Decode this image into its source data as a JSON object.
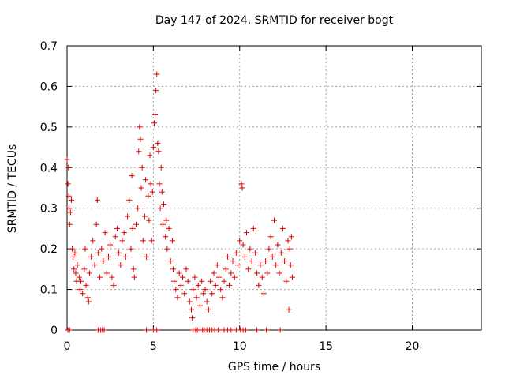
{
  "chart_data": {
    "type": "scatter",
    "title": "Day 147 of 2024, SRMTID for receiver bogt",
    "xlabel": "GPS time / hours",
    "ylabel": "SRMTID / TECUs",
    "xlim": [
      0,
      24
    ],
    "ylim": [
      0,
      0.7
    ],
    "xticks": [
      0,
      5,
      10,
      15,
      20
    ],
    "yticks": [
      0,
      0.1,
      0.2,
      0.3,
      0.4,
      0.5,
      0.6,
      0.7
    ],
    "ytick_labels": [
      "0",
      "0.1",
      "0.2",
      "0.3",
      "0.4",
      "0.5",
      "0.6",
      "0.7"
    ],
    "grid": true,
    "marker": "+",
    "color": "#e00000",
    "series": [
      {
        "name": "SRMTID",
        "points": [
          [
            0.0,
            0.42
          ],
          [
            0.05,
            0.36
          ],
          [
            0.08,
            0.4
          ],
          [
            0.1,
            0.33
          ],
          [
            0.12,
            0.3
          ],
          [
            0.15,
            0.26
          ],
          [
            0.2,
            0.29
          ],
          [
            0.25,
            0.32
          ],
          [
            0.3,
            0.2
          ],
          [
            0.35,
            0.18
          ],
          [
            0.4,
            0.15
          ],
          [
            0.45,
            0.19
          ],
          [
            0.5,
            0.14
          ],
          [
            0.55,
            0.12
          ],
          [
            0.6,
            0.16
          ],
          [
            0.7,
            0.13
          ],
          [
            0.75,
            0.1
          ],
          [
            0.8,
            0.12
          ],
          [
            0.9,
            0.09
          ],
          [
            1.0,
            0.15
          ],
          [
            1.05,
            0.2
          ],
          [
            1.1,
            0.11
          ],
          [
            1.2,
            0.08
          ],
          [
            1.25,
            0.07
          ],
          [
            1.3,
            0.14
          ],
          [
            1.4,
            0.18
          ],
          [
            1.5,
            0.22
          ],
          [
            1.6,
            0.16
          ],
          [
            1.7,
            0.26
          ],
          [
            1.75,
            0.32
          ],
          [
            1.8,
            0.19
          ],
          [
            1.9,
            0.13
          ],
          [
            2.0,
            0.2
          ],
          [
            2.1,
            0.17
          ],
          [
            2.2,
            0.24
          ],
          [
            2.3,
            0.14
          ],
          [
            2.4,
            0.18
          ],
          [
            2.5,
            0.21
          ],
          [
            2.6,
            0.13
          ],
          [
            2.7,
            0.11
          ],
          [
            2.8,
            0.23
          ],
          [
            2.9,
            0.25
          ],
          [
            3.0,
            0.19
          ],
          [
            3.1,
            0.16
          ],
          [
            3.2,
            0.22
          ],
          [
            3.3,
            0.24
          ],
          [
            3.4,
            0.18
          ],
          [
            3.5,
            0.28
          ],
          [
            3.6,
            0.32
          ],
          [
            3.7,
            0.2
          ],
          [
            3.75,
            0.38
          ],
          [
            3.8,
            0.25
          ],
          [
            3.85,
            0.15
          ],
          [
            3.9,
            0.13
          ],
          [
            4.0,
            0.26
          ],
          [
            4.1,
            0.3
          ],
          [
            4.15,
            0.44
          ],
          [
            4.2,
            0.5
          ],
          [
            4.25,
            0.47
          ],
          [
            4.3,
            0.35
          ],
          [
            4.35,
            0.4
          ],
          [
            4.4,
            0.22
          ],
          [
            4.5,
            0.28
          ],
          [
            4.55,
            0.37
          ],
          [
            4.6,
            0.18
          ],
          [
            4.7,
            0.33
          ],
          [
            4.75,
            0.27
          ],
          [
            4.8,
            0.43
          ],
          [
            4.85,
            0.36
          ],
          [
            4.9,
            0.22
          ],
          [
            4.95,
            0.34
          ],
          [
            5.0,
            0.45
          ],
          [
            5.05,
            0.51
          ],
          [
            5.1,
            0.53
          ],
          [
            5.15,
            0.59
          ],
          [
            5.2,
            0.63
          ],
          [
            5.25,
            0.46
          ],
          [
            5.3,
            0.44
          ],
          [
            5.35,
            0.36
          ],
          [
            5.4,
            0.3
          ],
          [
            5.45,
            0.4
          ],
          [
            5.5,
            0.34
          ],
          [
            5.55,
            0.26
          ],
          [
            5.6,
            0.31
          ],
          [
            5.7,
            0.23
          ],
          [
            5.75,
            0.27
          ],
          [
            5.8,
            0.2
          ],
          [
            5.9,
            0.25
          ],
          [
            6.0,
            0.17
          ],
          [
            6.1,
            0.22
          ],
          [
            6.15,
            0.15
          ],
          [
            6.2,
            0.12
          ],
          [
            6.3,
            0.1
          ],
          [
            6.4,
            0.08
          ],
          [
            6.5,
            0.14
          ],
          [
            6.6,
            0.11
          ],
          [
            6.7,
            0.13
          ],
          [
            6.8,
            0.09
          ],
          [
            6.9,
            0.15
          ],
          [
            7.0,
            0.12
          ],
          [
            7.1,
            0.07
          ],
          [
            7.2,
            0.05
          ],
          [
            7.25,
            0.03
          ],
          [
            7.3,
            0.1
          ],
          [
            7.4,
            0.13
          ],
          [
            7.5,
            0.08
          ],
          [
            7.6,
            0.11
          ],
          [
            7.7,
            0.06
          ],
          [
            7.8,
            0.12
          ],
          [
            7.9,
            0.09
          ],
          [
            8.0,
            0.1
          ],
          [
            8.1,
            0.07
          ],
          [
            8.2,
            0.05
          ],
          [
            8.3,
            0.12
          ],
          [
            8.4,
            0.09
          ],
          [
            8.5,
            0.14
          ],
          [
            8.6,
            0.11
          ],
          [
            8.7,
            0.16
          ],
          [
            8.8,
            0.13
          ],
          [
            8.9,
            0.1
          ],
          [
            9.0,
            0.08
          ],
          [
            9.1,
            0.12
          ],
          [
            9.2,
            0.15
          ],
          [
            9.3,
            0.18
          ],
          [
            9.4,
            0.11
          ],
          [
            9.5,
            0.14
          ],
          [
            9.6,
            0.17
          ],
          [
            9.7,
            0.13
          ],
          [
            9.8,
            0.19
          ],
          [
            9.9,
            0.16
          ],
          [
            10.0,
            0.22
          ],
          [
            10.1,
            0.36
          ],
          [
            10.15,
            0.35
          ],
          [
            10.2,
            0.21
          ],
          [
            10.3,
            0.18
          ],
          [
            10.4,
            0.24
          ],
          [
            10.5,
            0.15
          ],
          [
            10.6,
            0.2
          ],
          [
            10.7,
            0.17
          ],
          [
            10.8,
            0.25
          ],
          [
            10.9,
            0.19
          ],
          [
            11.0,
            0.14
          ],
          [
            11.1,
            0.11
          ],
          [
            11.2,
            0.16
          ],
          [
            11.3,
            0.13
          ],
          [
            11.4,
            0.09
          ],
          [
            11.5,
            0.17
          ],
          [
            11.6,
            0.14
          ],
          [
            11.7,
            0.2
          ],
          [
            11.8,
            0.23
          ],
          [
            11.9,
            0.18
          ],
          [
            12.0,
            0.27
          ],
          [
            12.1,
            0.16
          ],
          [
            12.2,
            0.21
          ],
          [
            12.3,
            0.14
          ],
          [
            12.4,
            0.19
          ],
          [
            12.5,
            0.25
          ],
          [
            12.6,
            0.17
          ],
          [
            12.7,
            0.12
          ],
          [
            12.8,
            0.22
          ],
          [
            12.85,
            0.05
          ],
          [
            12.9,
            0.2
          ],
          [
            12.95,
            0.16
          ],
          [
            13.0,
            0.23
          ],
          [
            13.05,
            0.13
          ],
          [
            0.05,
            0.0
          ],
          [
            0.15,
            0.0
          ],
          [
            1.8,
            0.0
          ],
          [
            1.95,
            0.0
          ],
          [
            2.05,
            0.0
          ],
          [
            2.15,
            0.0
          ],
          [
            4.6,
            0.0
          ],
          [
            5.0,
            0.0
          ],
          [
            5.2,
            0.0
          ],
          [
            7.3,
            0.0
          ],
          [
            7.45,
            0.0
          ],
          [
            7.55,
            0.0
          ],
          [
            7.7,
            0.0
          ],
          [
            7.85,
            0.0
          ],
          [
            7.95,
            0.0
          ],
          [
            8.1,
            0.0
          ],
          [
            8.25,
            0.0
          ],
          [
            8.4,
            0.0
          ],
          [
            8.55,
            0.0
          ],
          [
            8.75,
            0.0
          ],
          [
            9.1,
            0.0
          ],
          [
            9.3,
            0.0
          ],
          [
            9.5,
            0.0
          ],
          [
            9.8,
            0.0
          ],
          [
            10.05,
            0.0
          ],
          [
            10.2,
            0.0
          ],
          [
            10.35,
            0.0
          ],
          [
            11.0,
            0.0
          ],
          [
            11.55,
            0.0
          ],
          [
            12.35,
            0.0
          ]
        ]
      }
    ]
  }
}
